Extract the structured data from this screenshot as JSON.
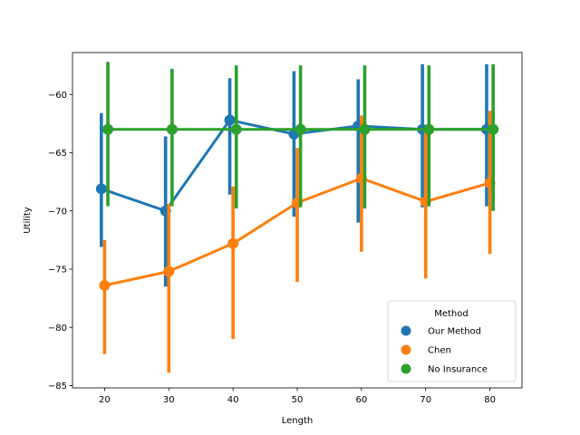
{
  "chart_data": {
    "type": "line",
    "xlabel": "Length",
    "ylabel": "Utility",
    "x": [
      20,
      30,
      40,
      50,
      60,
      70,
      80
    ],
    "xlim": [
      15,
      85
    ],
    "ylim": [
      -85.2,
      -56.4
    ],
    "yticks": [
      -85,
      -80,
      -75,
      -70,
      -65,
      -60
    ],
    "grid": false,
    "legend": {
      "title": "Method",
      "placement": "lower-right"
    },
    "series": [
      {
        "name": "Our Method",
        "color": "#1f77b4",
        "values": [
          -68.1,
          -70.0,
          -62.2,
          -63.4,
          -62.7,
          -63.0,
          -63.0
        ],
        "err_low": [
          -73.1,
          -76.5,
          -68.6,
          -70.5,
          -71.0,
          -69.7,
          -69.6
        ],
        "err_high": [
          -61.6,
          -63.6,
          -58.6,
          -58.0,
          -58.7,
          -57.4,
          -57.4
        ]
      },
      {
        "name": "Chen",
        "color": "#ff7f0e",
        "values": [
          -76.4,
          -75.2,
          -72.8,
          -69.3,
          -67.2,
          -69.2,
          -67.6
        ],
        "err_low": [
          -82.3,
          -83.9,
          -81.0,
          -76.1,
          -73.5,
          -75.8,
          -73.7
        ],
        "err_high": [
          -72.5,
          -69.4,
          -67.9,
          -64.6,
          -61.8,
          -62.8,
          -61.4
        ]
      },
      {
        "name": "No Insurance",
        "color": "#2ca02c",
        "values": [
          -63.0,
          -63.0,
          -63.0,
          -63.0,
          -63.0,
          -63.0,
          -63.0
        ],
        "err_low": [
          -69.6,
          -69.6,
          -69.8,
          -69.7,
          -69.8,
          -69.6,
          -70.0
        ],
        "err_high": [
          -57.2,
          -57.8,
          -57.5,
          -57.5,
          -57.5,
          -57.5,
          -57.4
        ]
      }
    ]
  }
}
